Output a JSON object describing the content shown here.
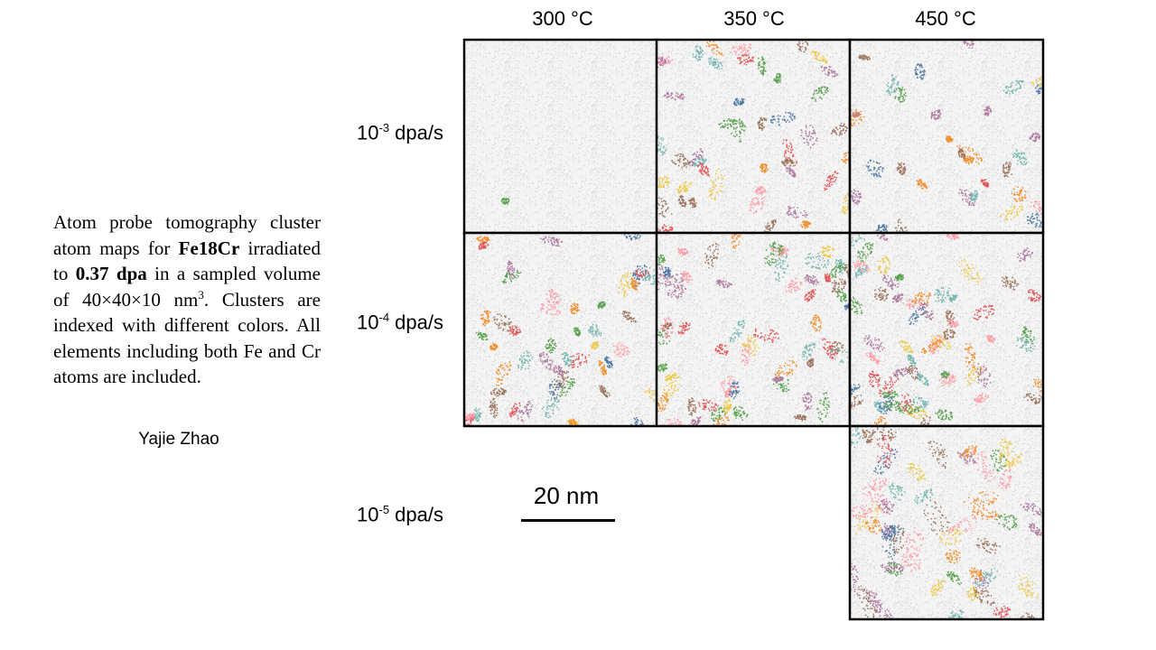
{
  "column_headers": [
    "300 °C",
    "350 °C",
    "450 °C"
  ],
  "row_labels": [
    {
      "base": "10",
      "exponent": "-3",
      "unit": "dpa/s"
    },
    {
      "base": "10",
      "exponent": "-4",
      "unit": "dpa/s"
    },
    {
      "base": "10",
      "exponent": "-5",
      "unit": "dpa/s"
    }
  ],
  "description": {
    "segments": [
      {
        "text": "Atom probe tomography cluster atom maps for ",
        "format": "plain"
      },
      {
        "text": "Fe18Cr",
        "format": "bold"
      },
      {
        "text": " irradiated to ",
        "format": "plain"
      },
      {
        "text": "0.37 dpa",
        "format": "bold"
      },
      {
        "text": " in a sampled volume of 40×40×10 nm",
        "format": "plain"
      },
      {
        "text": "3",
        "format": "sup"
      },
      {
        "text": ". Clusters are indexed with different colors. All elements including both Fe and Cr atoms are included.",
        "format": "plain"
      }
    ]
  },
  "author": "Yajie Zhao",
  "scale_bar": "20 nm"
}
